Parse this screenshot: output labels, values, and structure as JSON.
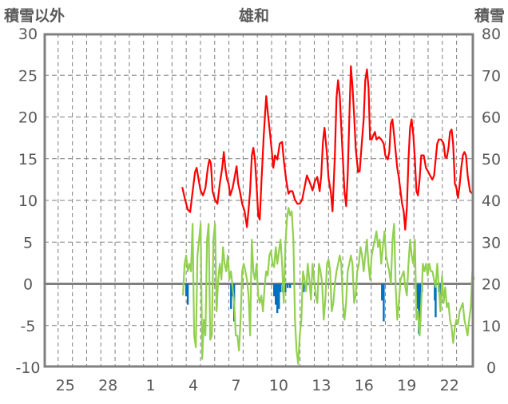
{
  "chart_data": {
    "type": "line",
    "title": "雄和",
    "ylabel_left": "積雪以外",
    "ylabel_right": "積雪",
    "ylim_left": [
      -10,
      30
    ],
    "ylim_right": [
      0,
      80
    ],
    "yticks_left": [
      "30",
      "25",
      "20",
      "15",
      "10",
      "5",
      "0",
      "-5",
      "-10"
    ],
    "yticks_right": [
      "80",
      "70",
      "60",
      "50",
      "40",
      "30",
      "20",
      "10",
      "0"
    ],
    "x_unit": "day index from start of axis (0 = start of day 24)",
    "xlim": [
      0,
      30.2
    ],
    "xtick_labels": [
      {
        "day": 1.5,
        "label": "25"
      },
      {
        "day": 4.5,
        "label": "28"
      },
      {
        "day": 7.5,
        "label": "1"
      },
      {
        "day": 10.5,
        "label": "4"
      },
      {
        "day": 13.5,
        "label": "7"
      },
      {
        "day": 16.5,
        "label": "10"
      },
      {
        "day": 19.5,
        "label": "13"
      },
      {
        "day": 22.5,
        "label": "16"
      },
      {
        "day": 25.5,
        "label": "19"
      },
      {
        "day": 28.5,
        "label": "22"
      }
    ],
    "grid": true,
    "colors": {
      "red_series": "#ff0000",
      "green_series": "#92d050",
      "blue_bars": "#0070c0",
      "frame": "#808080"
    },
    "red_series": [
      [
        9.72,
        11.6
      ],
      [
        9.89,
        10.3
      ],
      [
        10.11,
        8.9
      ],
      [
        10.28,
        8.6
      ],
      [
        10.45,
        11.1
      ],
      [
        10.62,
        13.4
      ],
      [
        10.73,
        13.9
      ],
      [
        10.9,
        12.2
      ],
      [
        11.01,
        11.2
      ],
      [
        11.18,
        10.6
      ],
      [
        11.35,
        11.5
      ],
      [
        11.52,
        13.9
      ],
      [
        11.63,
        14.9
      ],
      [
        11.74,
        14.4
      ],
      [
        11.85,
        11.1
      ],
      [
        12.02,
        10.1
      ],
      [
        12.19,
        9.6
      ],
      [
        12.36,
        12.0
      ],
      [
        12.53,
        13.9
      ],
      [
        12.64,
        15.8
      ],
      [
        12.75,
        13.9
      ],
      [
        12.87,
        12.5
      ],
      [
        12.98,
        12.0
      ],
      [
        13.09,
        10.6
      ],
      [
        13.26,
        11.5
      ],
      [
        13.37,
        12.5
      ],
      [
        13.54,
        14.1
      ],
      [
        13.65,
        12.0
      ],
      [
        13.76,
        11.2
      ],
      [
        13.93,
        9.6
      ],
      [
        14.1,
        8.7
      ],
      [
        14.27,
        6.8
      ],
      [
        14.38,
        8.9
      ],
      [
        14.49,
        11.1
      ],
      [
        14.61,
        15.4
      ],
      [
        14.72,
        16.3
      ],
      [
        14.83,
        14.9
      ],
      [
        14.94,
        12.0
      ],
      [
        15.06,
        8.2
      ],
      [
        15.17,
        7.7
      ],
      [
        15.28,
        12.0
      ],
      [
        15.45,
        17.8
      ],
      [
        15.62,
        22.5
      ],
      [
        15.73,
        20.6
      ],
      [
        15.9,
        17.8
      ],
      [
        16.01,
        16.0
      ],
      [
        16.12,
        13.9
      ],
      [
        16.24,
        15.4
      ],
      [
        16.4,
        14.9
      ],
      [
        16.57,
        16.8
      ],
      [
        16.74,
        17.0
      ],
      [
        16.85,
        14.9
      ],
      [
        17.02,
        12.5
      ],
      [
        17.19,
        10.8
      ],
      [
        17.3,
        11.1
      ],
      [
        17.47,
        11.1
      ],
      [
        17.64,
        10.1
      ],
      [
        17.81,
        9.6
      ],
      [
        17.98,
        9.6
      ],
      [
        18.15,
        10.1
      ],
      [
        18.31,
        11.5
      ],
      [
        18.48,
        13.0
      ],
      [
        18.6,
        12.5
      ],
      [
        18.76,
        11.8
      ],
      [
        18.88,
        11.2
      ],
      [
        19.04,
        12.3
      ],
      [
        19.21,
        12.8
      ],
      [
        19.38,
        11.1
      ],
      [
        19.49,
        13.0
      ],
      [
        19.61,
        17.0
      ],
      [
        19.72,
        18.7
      ],
      [
        19.89,
        15.6
      ],
      [
        20.0,
        12.7
      ],
      [
        20.17,
        10.9
      ],
      [
        20.28,
        8.7
      ],
      [
        20.45,
        15.5
      ],
      [
        20.56,
        22.3
      ],
      [
        20.67,
        24.4
      ],
      [
        20.79,
        22.5
      ],
      [
        20.9,
        18.7
      ],
      [
        21.01,
        14.9
      ],
      [
        21.12,
        11.2
      ],
      [
        21.24,
        9.3
      ],
      [
        21.35,
        13.0
      ],
      [
        21.46,
        19.7
      ],
      [
        21.57,
        26.1
      ],
      [
        21.69,
        23.5
      ],
      [
        21.8,
        20.1
      ],
      [
        21.91,
        16.3
      ],
      [
        22.08,
        13.4
      ],
      [
        22.19,
        13.5
      ],
      [
        22.36,
        17.3
      ],
      [
        22.47,
        19.7
      ],
      [
        22.58,
        24.4
      ],
      [
        22.7,
        25.7
      ],
      [
        22.81,
        23.5
      ],
      [
        22.92,
        17.3
      ],
      [
        23.03,
        17.3
      ],
      [
        23.15,
        17.8
      ],
      [
        23.26,
        18.2
      ],
      [
        23.37,
        17.3
      ],
      [
        23.54,
        17.6
      ],
      [
        23.71,
        17.3
      ],
      [
        23.88,
        16.8
      ],
      [
        23.99,
        15.4
      ],
      [
        24.16,
        14.9
      ],
      [
        24.27,
        15.8
      ],
      [
        24.38,
        19.2
      ],
      [
        24.49,
        19.7
      ],
      [
        24.61,
        17.8
      ],
      [
        24.72,
        15.8
      ],
      [
        24.83,
        13.9
      ],
      [
        24.94,
        12.8
      ],
      [
        25.06,
        11.1
      ],
      [
        25.17,
        9.6
      ],
      [
        25.28,
        8.7
      ],
      [
        25.39,
        6.5
      ],
      [
        25.51,
        9.1
      ],
      [
        25.62,
        14.9
      ],
      [
        25.73,
        18.7
      ],
      [
        25.84,
        19.7
      ],
      [
        25.96,
        17.8
      ],
      [
        26.07,
        14.9
      ],
      [
        26.18,
        11.1
      ],
      [
        26.29,
        10.6
      ],
      [
        26.4,
        12.5
      ],
      [
        26.52,
        15.4
      ],
      [
        26.69,
        15.4
      ],
      [
        26.85,
        13.9
      ],
      [
        27.02,
        13.4
      ],
      [
        27.13,
        13.0
      ],
      [
        27.3,
        12.5
      ],
      [
        27.42,
        13.0
      ],
      [
        27.53,
        14.9
      ],
      [
        27.64,
        16.8
      ],
      [
        27.75,
        17.3
      ],
      [
        27.92,
        17.3
      ],
      [
        28.09,
        16.8
      ],
      [
        28.2,
        15.2
      ],
      [
        28.31,
        15.1
      ],
      [
        28.43,
        16.3
      ],
      [
        28.54,
        18.2
      ],
      [
        28.65,
        18.5
      ],
      [
        28.76,
        16.8
      ],
      [
        28.88,
        12.0
      ],
      [
        28.99,
        11.5
      ],
      [
        29.1,
        10.3
      ],
      [
        29.21,
        11.8
      ],
      [
        29.33,
        13.9
      ],
      [
        29.44,
        15.4
      ],
      [
        29.55,
        15.8
      ],
      [
        29.66,
        15.4
      ],
      [
        29.78,
        13.0
      ],
      [
        29.94,
        11.1
      ],
      [
        30.11,
        10.8
      ]
    ],
    "green_series": {
      "x_start": 9.775,
      "x_step": 0.11236,
      "values": [
        -1.4,
        2.4,
        3.4,
        1.5,
        2.4,
        1.5,
        7.2,
        -6.2,
        -7.6,
        3.4,
        5.3,
        7.2,
        -9.0,
        -4.3,
        -6.2,
        5.3,
        7.2,
        -6.7,
        -6.2,
        5.3,
        7.2,
        -3.3,
        0.5,
        2.4,
        0.5,
        4.4,
        2.4,
        1.5,
        3.4,
        0.5,
        1.5,
        -0.4,
        -2.3,
        -6.2,
        -6.2,
        -8.0,
        -4.3,
        1.5,
        2.4,
        1.5,
        0.5,
        -1.4,
        -6.2,
        5.3,
        1.5,
        0.5,
        2.4,
        -1.4,
        -2.3,
        -1.4,
        -3.3,
        -0.4,
        1.5,
        1.0,
        3.4,
        3.9,
        2.4,
        2.0,
        4.4,
        2.4,
        3.9,
        5.3,
        2.4,
        -2.3,
        4.4,
        7.7,
        9.1,
        8.2,
        8.7,
        5.3,
        -4.3,
        -8.0,
        -9.6,
        -6.2,
        -4.3,
        1.5,
        0.5,
        -0.9,
        2.4,
        0.5,
        -1.9,
        2.4,
        0.5,
        -1.4,
        -2.3,
        2.4,
        1.5,
        0.05,
        -4.3,
        -1.9,
        2.4,
        2.9,
        1.5,
        -3.3,
        -2.3,
        0.05,
        1.5,
        2.4,
        3.4,
        2.4,
        -2.3,
        -4.3,
        -2.3,
        1.5,
        2.4,
        3.4,
        2.4,
        -2.3,
        -1.4,
        1.5,
        2.4,
        4.4,
        3.4,
        1.5,
        3.4,
        5.3,
        2.4,
        0.5,
        3.4,
        4.4,
        5.3,
        6.3,
        4.4,
        5.3,
        2.4,
        4.4,
        6.3,
        3.4,
        2.4,
        1.5,
        0.05,
        5.3,
        7.2,
        -0.4,
        -4.3,
        -2.3,
        0.5,
        1.0,
        1.5,
        -0.4,
        -1.4,
        2.4,
        5.3,
        3.4,
        2.4,
        5.3,
        -4.3,
        -3.3,
        -6.2,
        -2.3,
        2.4,
        1.5,
        2.4,
        1.0,
        2.4,
        1.5,
        1.5,
        0.5,
        -0.4,
        2.4,
        -0.4,
        -3.3,
        1.0,
        -2.3,
        -0.4,
        -2.8,
        -2.3,
        -4.3,
        -5.2,
        -7.1,
        -5.2,
        -4.3,
        -4.8,
        -3.3,
        -2.8,
        -2.3,
        -4.3,
        -5.2,
        -6.2,
        -4.3,
        -2.8,
        1.5,
        0.5
      ]
    },
    "blue_bars": [
      [
        10.0,
        -1.5
      ],
      [
        10.11,
        -2.5
      ],
      [
        13.15,
        -3.0
      ],
      [
        13.26,
        -1.5
      ],
      [
        13.37,
        -4.5
      ],
      [
        16.18,
        -1.5
      ],
      [
        16.29,
        -2.5
      ],
      [
        16.4,
        -3.5
      ],
      [
        16.52,
        -3.0
      ],
      [
        16.63,
        -1.0
      ],
      [
        16.8,
        -1.0
      ],
      [
        16.97,
        -1.0
      ],
      [
        17.13,
        -0.5
      ],
      [
        17.3,
        -0.5
      ],
      [
        18.26,
        -1.0
      ],
      [
        23.76,
        -2.0
      ],
      [
        23.88,
        -4.5
      ],
      [
        26.24,
        -3.0
      ],
      [
        26.35,
        -6.0
      ],
      [
        26.46,
        -4.5
      ],
      [
        26.57,
        -1.0
      ],
      [
        27.47,
        -2.0
      ],
      [
        27.53,
        -4.0
      ],
      [
        27.75,
        -1.0
      ],
      [
        27.87,
        -1.5
      ]
    ]
  }
}
